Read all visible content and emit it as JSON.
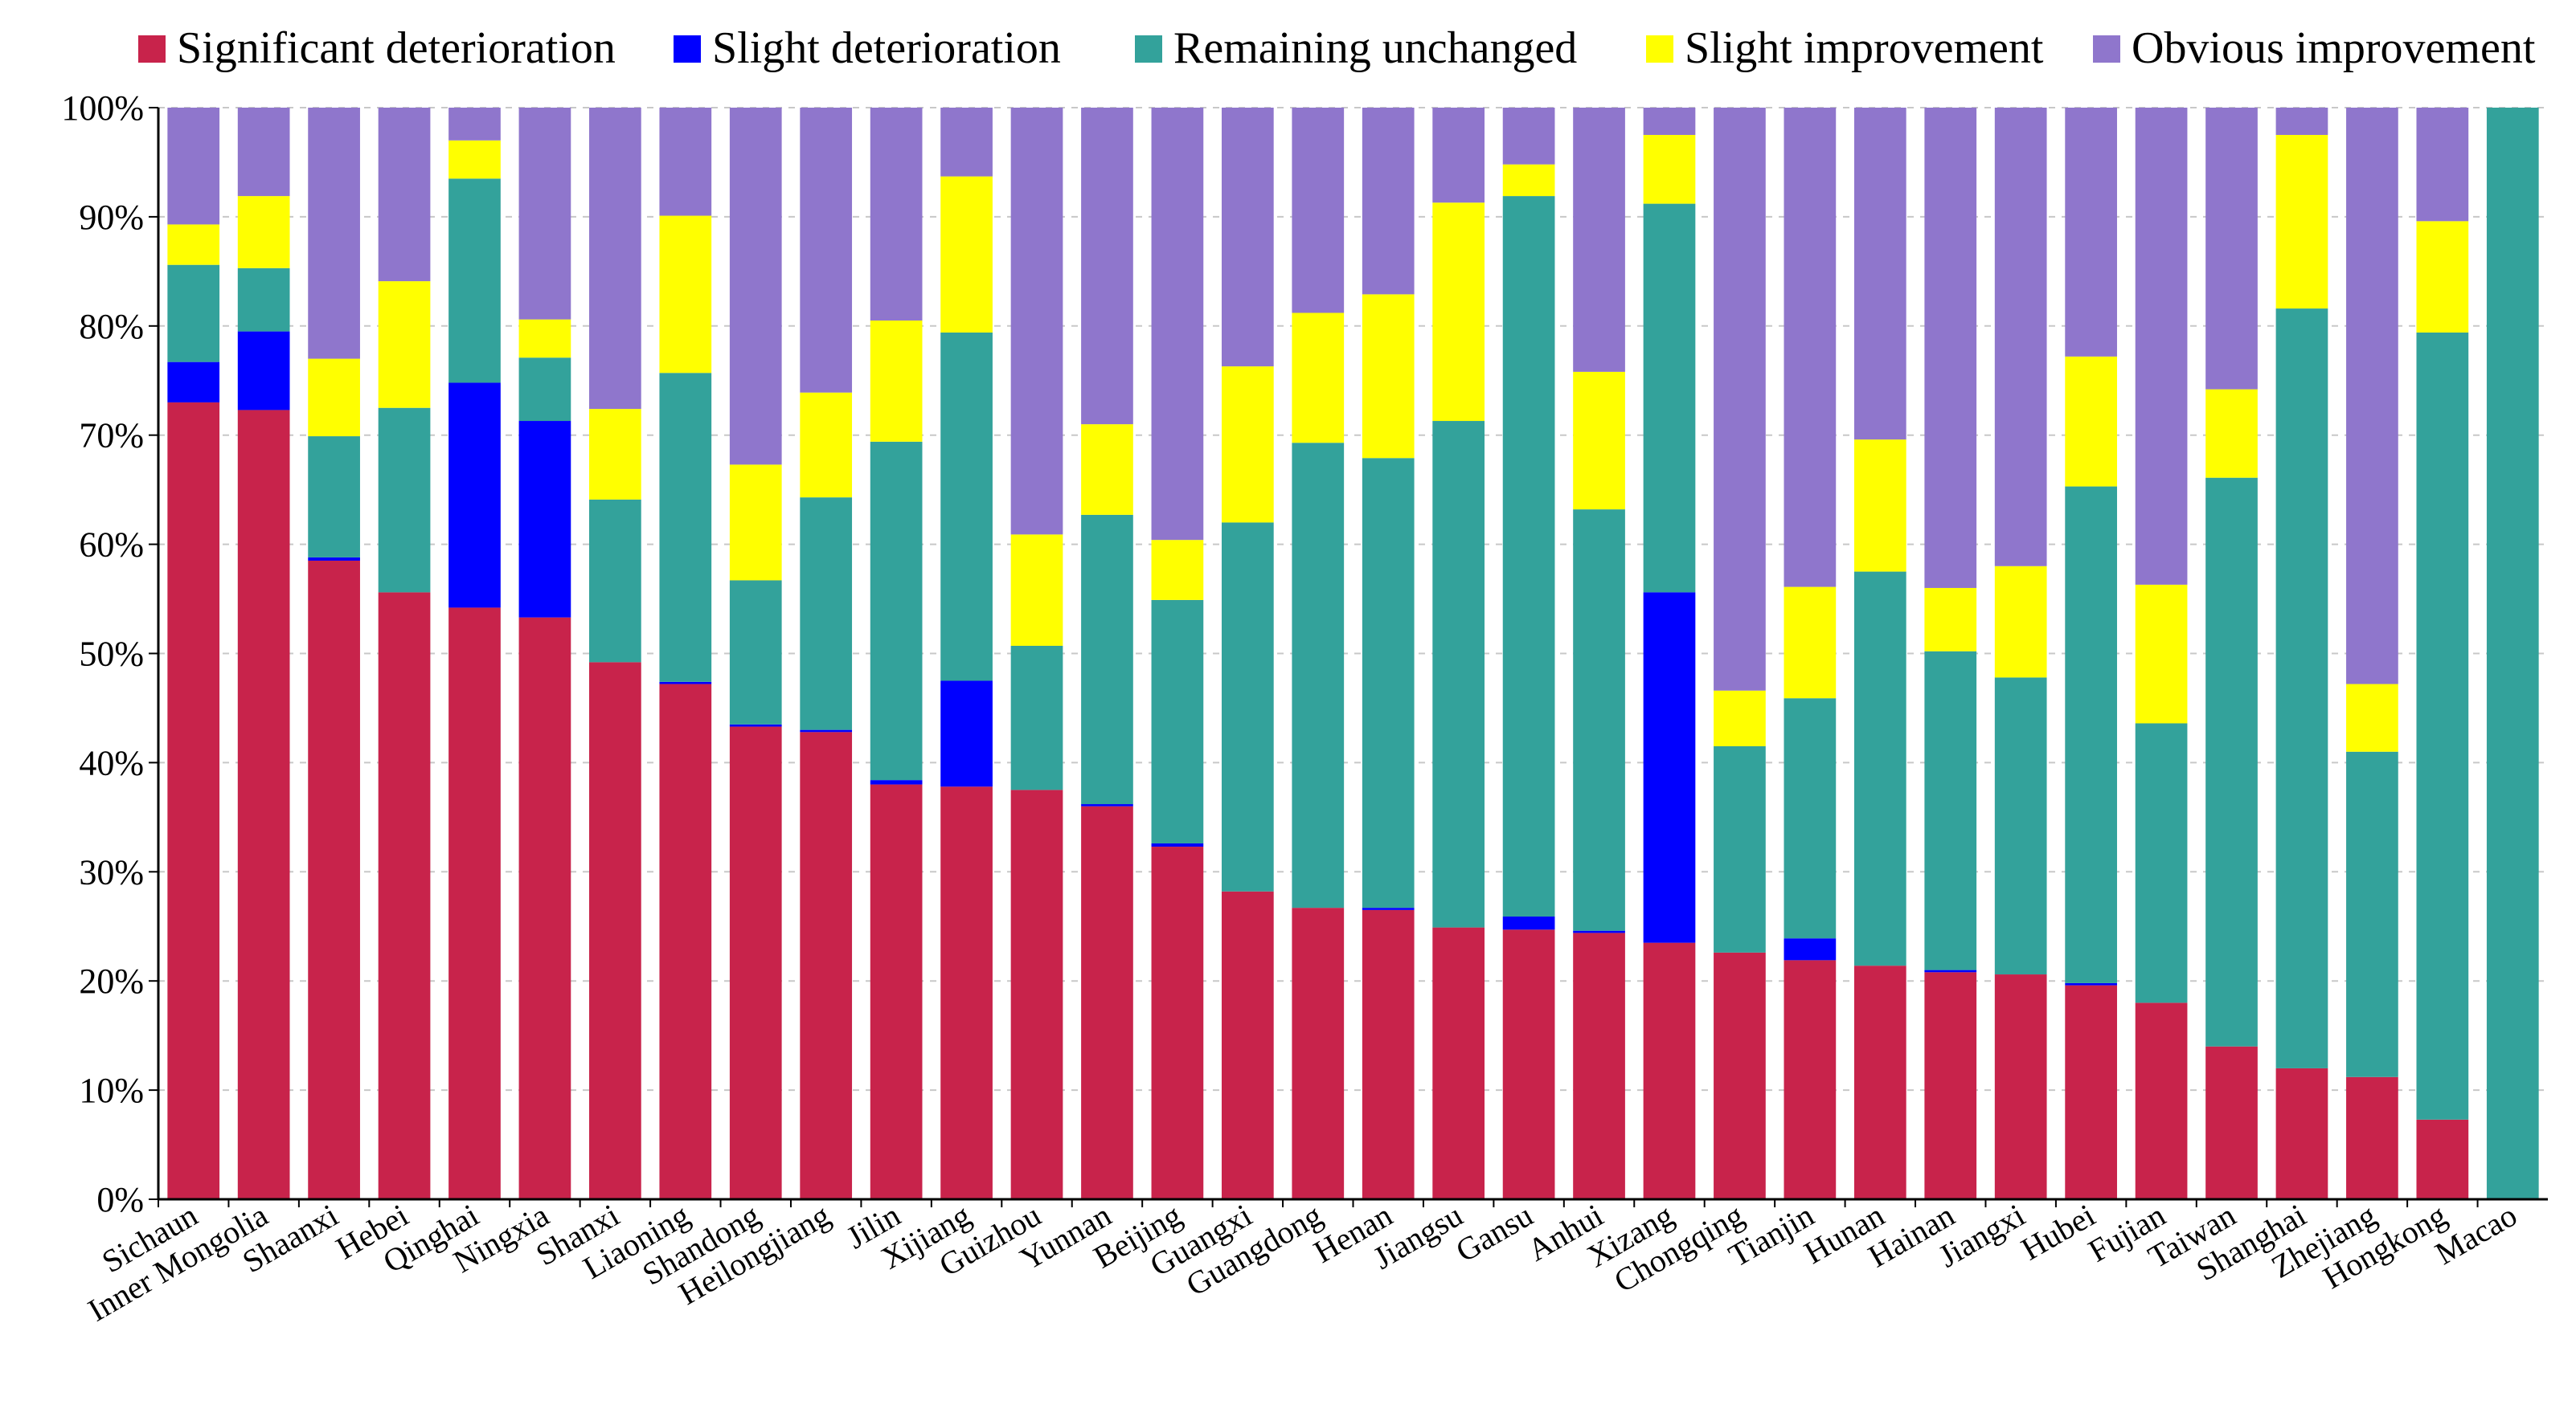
{
  "chart_data": {
    "type": "bar",
    "stacked": true,
    "title": "",
    "xlabel": "",
    "ylabel": "",
    "ylim": [
      0,
      100
    ],
    "ytick_labels": [
      "0%",
      "10%",
      "20%",
      "30%",
      "40%",
      "50%",
      "60%",
      "70%",
      "80%",
      "90%",
      "100%"
    ],
    "ytick_values": [
      0,
      10,
      20,
      30,
      40,
      50,
      60,
      70,
      80,
      90,
      100
    ],
    "grid": "horizontal dashed",
    "legend_position": "top",
    "categories": [
      "Sichaun",
      "Inner Mongolia",
      "Shaanxi",
      "Hebei",
      "Qinghai",
      "Ningxia",
      "Shanxi",
      "Liaoning",
      "Shandong",
      "Heilongjiang",
      "Jilin",
      "Xijiang",
      "Guizhou",
      "Yunnan",
      "Beijing",
      "Guangxi",
      "Guangdong",
      "Henan",
      "Jiangsu",
      "Gansu",
      "Anhui",
      "Xizang",
      "Chongqing",
      "Tianjin",
      "Hunan",
      "Hainan",
      "Jiangxi",
      "Hubei",
      "Fujian",
      "Taiwan",
      "Shanghai",
      "Zhejiang",
      "Hongkong",
      "Macao"
    ],
    "series": [
      {
        "name": "Significant deterioration",
        "color": "#c8234b",
        "values": [
          73.0,
          72.3,
          58.5,
          55.6,
          54.2,
          53.3,
          49.2,
          47.2,
          43.3,
          42.8,
          38.0,
          37.8,
          37.5,
          36.0,
          32.3,
          28.2,
          26.7,
          26.5,
          24.9,
          24.7,
          24.4,
          23.5,
          22.6,
          21.9,
          21.4,
          20.8,
          20.6,
          19.6,
          18.0,
          14.0,
          12.0,
          11.2,
          7.3,
          0
        ]
      },
      {
        "name": "Slight deterioration",
        "color": "#0000ff",
        "values": [
          3.7,
          7.2,
          0.3,
          0,
          20.6,
          18.0,
          0,
          0.2,
          0.2,
          0.2,
          0.4,
          9.7,
          0,
          0.2,
          0.3,
          0,
          0,
          0.2,
          0,
          1.2,
          0.2,
          32.1,
          0,
          2.0,
          0,
          0.2,
          0,
          0.2,
          0,
          0,
          0,
          0,
          0,
          0
        ]
      },
      {
        "name": "Remaining unchanged",
        "color": "#33a29b",
        "values": [
          8.9,
          5.8,
          11.1,
          16.9,
          18.7,
          5.8,
          14.9,
          28.3,
          13.2,
          21.3,
          31.0,
          31.9,
          13.2,
          26.5,
          22.3,
          33.8,
          42.6,
          41.2,
          46.4,
          66.0,
          38.6,
          35.6,
          18.9,
          22.0,
          36.1,
          29.2,
          27.2,
          45.5,
          25.6,
          52.1,
          69.6,
          29.8,
          72.1,
          100
        ]
      },
      {
        "name": "Slight improvement",
        "color": "#ffff00",
        "values": [
          3.7,
          6.6,
          7.1,
          11.6,
          3.5,
          3.5,
          8.3,
          14.4,
          10.6,
          9.6,
          11.1,
          14.3,
          10.2,
          8.3,
          5.5,
          14.3,
          11.9,
          15.0,
          20.0,
          2.9,
          12.6,
          6.3,
          5.1,
          10.2,
          12.1,
          5.8,
          10.2,
          11.9,
          12.7,
          8.1,
          15.9,
          6.2,
          10.2,
          0
        ]
      },
      {
        "name": "Obvious improvement",
        "color": "#8f76cc",
        "values": [
          10.7,
          8.1,
          23.0,
          15.9,
          3.0,
          19.4,
          27.6,
          9.9,
          32.7,
          26.1,
          19.5,
          6.3,
          39.1,
          29.0,
          39.6,
          23.7,
          18.8,
          17.1,
          8.7,
          5.2,
          24.2,
          2.5,
          53.4,
          43.9,
          30.4,
          44.0,
          42.0,
          22.8,
          43.7,
          25.8,
          2.5,
          52.8,
          10.4,
          0
        ]
      }
    ]
  }
}
